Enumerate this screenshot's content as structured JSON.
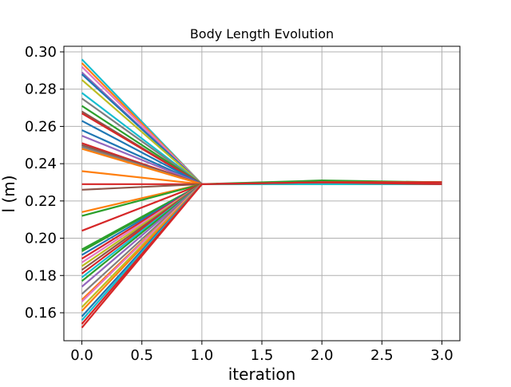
{
  "chart_data": {
    "type": "line",
    "title": "Body Length Evolution",
    "xlabel": "iteration",
    "ylabel": "l (m)",
    "xlim": [
      -0.15,
      3.15
    ],
    "ylim": [
      0.145,
      0.303
    ],
    "x": [
      0,
      1,
      2,
      3
    ],
    "xticks": [
      0.0,
      0.5,
      1.0,
      1.5,
      2.0,
      2.5,
      3.0
    ],
    "xtick_labels": [
      "0.0",
      "0.5",
      "1.0",
      "1.5",
      "2.0",
      "2.5",
      "3.0"
    ],
    "yticks": [
      0.16,
      0.18,
      0.2,
      0.22,
      0.24,
      0.26,
      0.28,
      0.3
    ],
    "ytick_labels": [
      "0.16",
      "0.18",
      "0.20",
      "0.22",
      "0.24",
      "0.26",
      "0.28",
      "0.30"
    ],
    "grid": true,
    "legend": "none",
    "palette": [
      "#1f77b4",
      "#ff7f0e",
      "#2ca02c",
      "#d62728",
      "#9467bd",
      "#8c564b",
      "#e377c2",
      "#7f7f7f",
      "#bcbd22",
      "#17becf"
    ],
    "series": [
      {
        "values": [
          0.296,
          0.229,
          0.23,
          0.23
        ],
        "color": "#17becf"
      },
      {
        "values": [
          0.294,
          0.229,
          0.23,
          0.229
        ],
        "color": "#ff7f0e"
      },
      {
        "values": [
          0.292,
          0.229,
          0.229,
          0.229
        ],
        "color": "#e377c2"
      },
      {
        "values": [
          0.289,
          0.229,
          0.23,
          0.23
        ],
        "color": "#9467bd"
      },
      {
        "values": [
          0.288,
          0.229,
          0.23,
          0.229
        ],
        "color": "#1f77b4"
      },
      {
        "values": [
          0.285,
          0.229,
          0.229,
          0.229
        ],
        "color": "#bcbd22"
      },
      {
        "values": [
          0.278,
          0.229,
          0.23,
          0.23
        ],
        "color": "#17becf"
      },
      {
        "values": [
          0.275,
          0.229,
          0.23,
          0.229
        ],
        "color": "#7f7f7f"
      },
      {
        "values": [
          0.271,
          0.229,
          0.229,
          0.229
        ],
        "color": "#2ca02c"
      },
      {
        "values": [
          0.268,
          0.229,
          0.23,
          0.23
        ],
        "color": "#8c564b"
      },
      {
        "values": [
          0.267,
          0.229,
          0.23,
          0.229
        ],
        "color": "#d62728"
      },
      {
        "values": [
          0.263,
          0.229,
          0.229,
          0.229
        ],
        "color": "#1f77b4"
      },
      {
        "values": [
          0.258,
          0.229,
          0.23,
          0.23
        ],
        "color": "#1f77b4"
      },
      {
        "values": [
          0.255,
          0.229,
          0.23,
          0.229
        ],
        "color": "#9467bd"
      },
      {
        "values": [
          0.251,
          0.229,
          0.229,
          0.229
        ],
        "color": "#d62728"
      },
      {
        "values": [
          0.25,
          0.229,
          0.23,
          0.23
        ],
        "color": "#8c564b"
      },
      {
        "values": [
          0.249,
          0.229,
          0.23,
          0.229
        ],
        "color": "#7f7f7f"
      },
      {
        "values": [
          0.248,
          0.229,
          0.229,
          0.229
        ],
        "color": "#ff7f0e"
      },
      {
        "values": [
          0.236,
          0.229,
          0.23,
          0.23
        ],
        "color": "#ff7f0e"
      },
      {
        "values": [
          0.229,
          0.229,
          0.23,
          0.229
        ],
        "color": "#d62728"
      },
      {
        "values": [
          0.226,
          0.229,
          0.229,
          0.229
        ],
        "color": "#8c564b"
      },
      {
        "values": [
          0.214,
          0.229,
          0.23,
          0.23
        ],
        "color": "#ff7f0e"
      },
      {
        "values": [
          0.212,
          0.229,
          0.23,
          0.229
        ],
        "color": "#2ca02c"
      },
      {
        "values": [
          0.204,
          0.229,
          0.229,
          0.229
        ],
        "color": "#d62728"
      },
      {
        "values": [
          0.194,
          0.229,
          0.231,
          0.23
        ],
        "color": "#2ca02c"
      },
      {
        "values": [
          0.193,
          0.229,
          0.23,
          0.229
        ],
        "color": "#2ca02c"
      },
      {
        "values": [
          0.191,
          0.229,
          0.229,
          0.229
        ],
        "color": "#1f77b4"
      },
      {
        "values": [
          0.189,
          0.229,
          0.23,
          0.23
        ],
        "color": "#d62728"
      },
      {
        "values": [
          0.187,
          0.229,
          0.23,
          0.229
        ],
        "color": "#e377c2"
      },
      {
        "values": [
          0.185,
          0.229,
          0.229,
          0.229
        ],
        "color": "#bcbd22"
      },
      {
        "values": [
          0.183,
          0.229,
          0.23,
          0.23
        ],
        "color": "#8c564b"
      },
      {
        "values": [
          0.181,
          0.229,
          0.23,
          0.229
        ],
        "color": "#d62728"
      },
      {
        "values": [
          0.179,
          0.229,
          0.229,
          0.229
        ],
        "color": "#17becf"
      },
      {
        "values": [
          0.177,
          0.229,
          0.23,
          0.23
        ],
        "color": "#2ca02c"
      },
      {
        "values": [
          0.174,
          0.229,
          0.23,
          0.229
        ],
        "color": "#9467bd"
      },
      {
        "values": [
          0.17,
          0.229,
          0.229,
          0.229
        ],
        "color": "#7f7f7f"
      },
      {
        "values": [
          0.167,
          0.229,
          0.23,
          0.23
        ],
        "color": "#ff7f0e"
      },
      {
        "values": [
          0.166,
          0.229,
          0.23,
          0.229
        ],
        "color": "#e377c2"
      },
      {
        "values": [
          0.163,
          0.229,
          0.229,
          0.229
        ],
        "color": "#bcbd22"
      },
      {
        "values": [
          0.161,
          0.229,
          0.23,
          0.23
        ],
        "color": "#ff7f0e"
      },
      {
        "values": [
          0.158,
          0.229,
          0.23,
          0.229
        ],
        "color": "#1f77b4"
      },
      {
        "values": [
          0.156,
          0.229,
          0.229,
          0.229
        ],
        "color": "#17becf"
      },
      {
        "values": [
          0.154,
          0.229,
          0.23,
          0.23
        ],
        "color": "#d62728"
      },
      {
        "values": [
          0.152,
          0.229,
          0.23,
          0.229
        ],
        "color": "#d62728"
      }
    ]
  }
}
